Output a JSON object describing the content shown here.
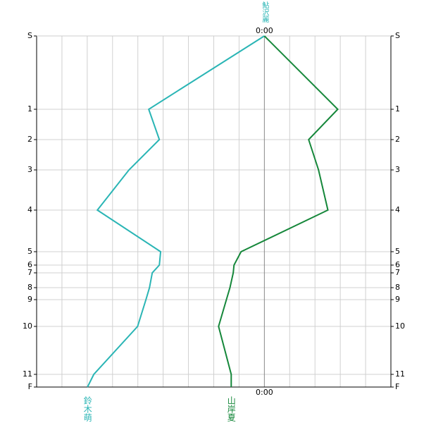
{
  "chart_data": {
    "type": "line",
    "top_label": "鮎沢麗",
    "stations": [
      "S",
      "1",
      "2",
      "3",
      "4",
      "5",
      "6",
      "7",
      "8",
      "9",
      "10",
      "11",
      "F"
    ],
    "positions": [
      0,
      104,
      147,
      190,
      247,
      306,
      325,
      336,
      357,
      374,
      412,
      480,
      498
    ],
    "ylim": [
      0,
      498
    ],
    "xlim": [
      -9,
      5
    ],
    "xticks": [
      {
        "value": 0,
        "label": "0:00"
      }
    ],
    "grid_x": [
      -8,
      -7,
      -6,
      -5,
      -4,
      -3,
      -2,
      -1,
      1,
      2,
      3,
      4
    ],
    "grid": true,
    "series": [
      {
        "name": "鈴木萌",
        "color": "#2ab5b5",
        "values": [
          0,
          -4.57,
          -4.15,
          -5.35,
          -6.6,
          -4.1,
          -4.15,
          -4.43,
          -4.54,
          -4.68,
          -5.01,
          -6.74,
          -6.99
        ]
      },
      {
        "name": "山岸夏",
        "color": "#15873a",
        "values": [
          0,
          2.9,
          1.75,
          2.14,
          2.51,
          -0.92,
          -1.2,
          -1.23,
          -1.36,
          -1.5,
          -1.81,
          -1.31,
          -1.31
        ]
      }
    ]
  }
}
